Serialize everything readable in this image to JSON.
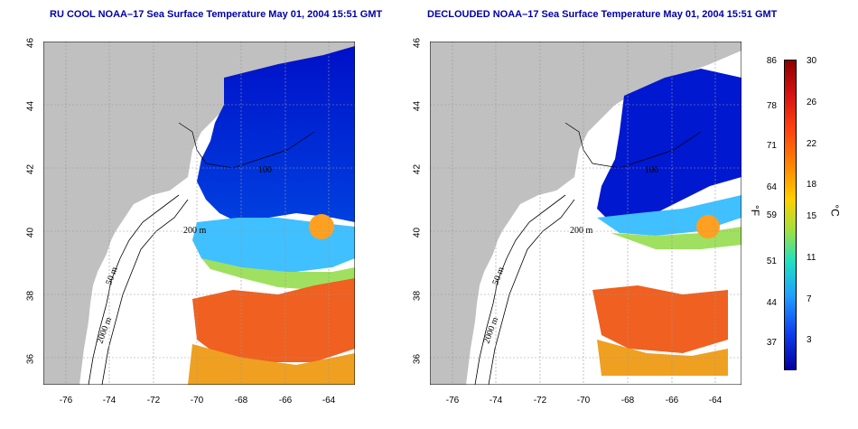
{
  "titles": {
    "left": "RU COOL NOAA–17 Sea Surface Temperature May 01, 2004 15:51 GMT",
    "right": "DECLOUDED NOAA–17 Sea Surface Temperature May 01, 2004 15:51 GMT"
  },
  "axes": {
    "lat_labels": [
      "46",
      "44",
      "42",
      "40",
      "38",
      "36"
    ],
    "lon_labels": [
      "-76",
      "-74",
      "-72",
      "-70",
      "-68",
      "-66",
      "-64"
    ]
  },
  "contour_labels": {
    "left": [
      "200 m",
      "50 m",
      "2000 m",
      "100"
    ],
    "right": [
      "200 m",
      "50 m",
      "2000 m",
      "100"
    ]
  },
  "colorbar": {
    "fahrenheit_ticks": [
      "86",
      "78",
      "71",
      "64",
      "59",
      "51",
      "44",
      "37"
    ],
    "celsius_ticks": [
      "30",
      "26",
      "22",
      "18",
      "15",
      "11",
      "7",
      "3"
    ],
    "f_unit": "°F",
    "c_unit": "°C"
  },
  "colors": {
    "land": "#c0c0c0",
    "ocean_cloud": "#ffffff",
    "title": "#0000a8"
  }
}
